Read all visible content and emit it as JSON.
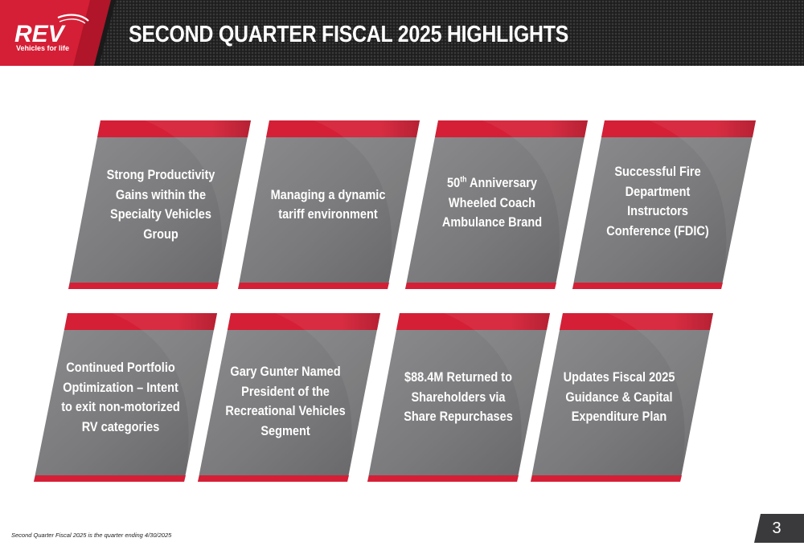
{
  "header": {
    "title": "SECOND QUARTER FISCAL 2025 HIGHLIGHTS",
    "logo_text": "REV",
    "logo_tagline": "Vehicles for life"
  },
  "colors": {
    "accent_red": "#d51f36",
    "card_gray": "#7a7a7c",
    "header_dark": "#1e1e1e"
  },
  "cards": [
    {
      "line1": "Strong Productivity",
      "line2": "Gains within the",
      "line3": "Specialty Vehicles",
      "line4": "Group"
    },
    {
      "line1": "Managing a dynamic",
      "line2": "tariff environment"
    },
    {
      "line1_num": "50",
      "line1_sup": "th",
      "line1_rest": " Anniversary",
      "line2": "Wheeled Coach",
      "line3": "Ambulance Brand"
    },
    {
      "line1": "Successful Fire",
      "line2": "Department",
      "line3": "Instructors",
      "line4": "Conference (FDIC)"
    },
    {
      "line1": "Continued Portfolio",
      "line2": "Optimization – Intent",
      "line3": "to exit non-motorized",
      "line4": "RV categories"
    },
    {
      "line1": "Gary Gunter Named",
      "line2": "President of the",
      "line3": "Recreational Vehicles",
      "line4": "Segment"
    },
    {
      "line1": "$88.4M Returned to",
      "line2": "Shareholders via",
      "line3": "Share Repurchases"
    },
    {
      "line1": "Updates Fiscal 2025",
      "line2": "Guidance & Capital",
      "line3": "Expenditure Plan"
    }
  ],
  "footer": {
    "footnote": "Second Quarter Fiscal 2025 is the quarter ending 4/30/2025",
    "page_number": "3"
  }
}
